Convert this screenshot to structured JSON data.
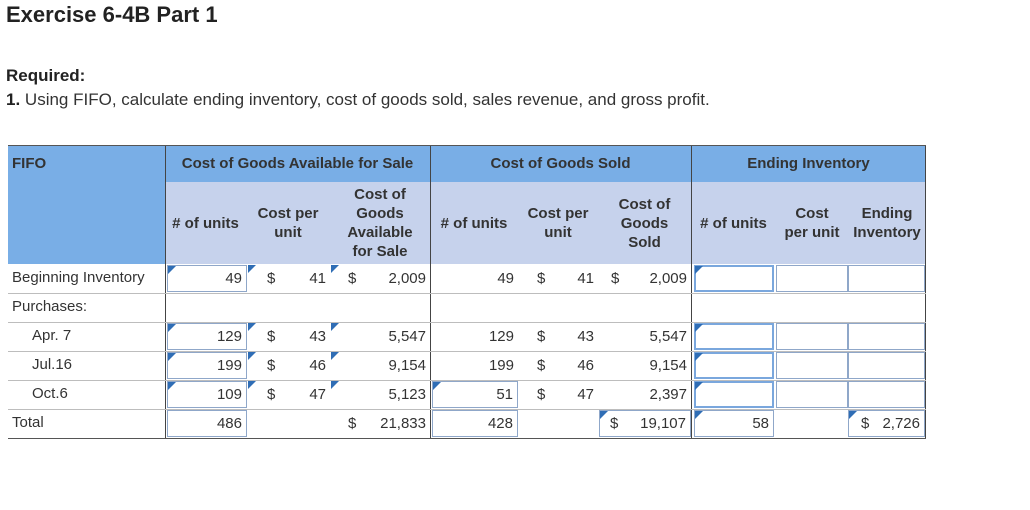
{
  "title": "Exercise 6-4B Part 1",
  "required_label": "Required:",
  "required_number": "1.",
  "required_text": "Using FIFO, calculate ending inventory, cost of goods sold, sales revenue, and gross profit.",
  "table": {
    "corner_label": "FIFO",
    "groups": {
      "available": "Cost of Goods Available for Sale",
      "sold": "Cost of Goods Sold",
      "ending": "Ending Inventory"
    },
    "subheaders": {
      "avail_units": "# of units",
      "avail_cost": "Cost per unit",
      "avail_total": "Cost of Goods Available for Sale",
      "sold_units": "# of units",
      "sold_cost": "Cost per unit",
      "sold_total": "Cost of Goods Sold",
      "end_units": "# of units",
      "end_cost": "Cost per unit",
      "end_total": "Ending Inventory"
    },
    "currency": "$",
    "rows": {
      "beginning": {
        "label": "Beginning Inventory",
        "a_units": "49",
        "a_cost": "41",
        "a_total": "2,009",
        "s_units": "49",
        "s_cost": "41",
        "s_total": "2,009"
      },
      "purchases": {
        "label": "Purchases:"
      },
      "apr": {
        "label": "Apr. 7",
        "a_units": "129",
        "a_cost": "43",
        "a_total": "5,547",
        "s_units": "129",
        "s_cost": "43",
        "s_total": "5,547"
      },
      "jul": {
        "label": "Jul.16",
        "a_units": "199",
        "a_cost": "46",
        "a_total": "9,154",
        "s_units": "199",
        "s_cost": "46",
        "s_total": "9,154"
      },
      "oct": {
        "label": "Oct.6",
        "a_units": "109",
        "a_cost": "47",
        "a_total": "5,123",
        "s_units": "51",
        "s_cost": "47",
        "s_total": "2,397"
      },
      "total": {
        "label": "Total",
        "a_units": "486",
        "a_total": "21,833",
        "s_units": "428",
        "s_total": "19,107",
        "e_units": "58",
        "e_total": "2,726"
      }
    }
  }
}
